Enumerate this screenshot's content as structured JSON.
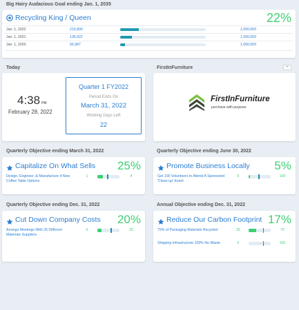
{
  "bhag": {
    "section_title": "Big Hairy Audacious Goal ending Jan. 1, 2035",
    "title": "Recycling King / Queen",
    "percent": "22%",
    "rows": [
      {
        "date": "Jan. 1, 2022",
        "value": "215,800",
        "target": "1,000,000",
        "progress": 0.216
      },
      {
        "date": "Jan. 1, 2021",
        "value": "135,922",
        "target": "1,000,000",
        "progress": 0.136
      },
      {
        "date": "Jan. 1, 2020",
        "value": "56,987",
        "target": "1,000,000",
        "progress": 0.057
      }
    ]
  },
  "today": {
    "section_title": "Today",
    "time": "4:38",
    "ampm": "PM",
    "date": "February 28, 2022",
    "quarter": "Quarter 1 FY2022",
    "period_label": "Period Ends On",
    "period_end": "March 31, 2022",
    "working_label": "Working Days Left",
    "working_days": "22"
  },
  "logo_panel": {
    "section_title": "FirstInFurniture",
    "collapse_label": "−",
    "brand_name": "FirstInFurniture",
    "tagline": "purchase with purpose."
  },
  "objectives": [
    {
      "section_title": "Quarterly Objective ending March 31, 2022",
      "title": "Capitalize On What Sells",
      "percent": "25%",
      "items": [
        {
          "name": "Design, Engineer, & Manufacture 4 New Coffee Table Options",
          "current": "1",
          "target": "4",
          "progress": 0.25,
          "marker": 0.45
        }
      ]
    },
    {
      "section_title": "Quarterly Objective ending June 30, 2022",
      "title": "Promote Business Locally",
      "percent": "5%",
      "items": [
        {
          "name": "Get 100 Volunteers to Attend A Sponsored 'Clean-up' Event",
          "current": "5",
          "target": "100",
          "progress": 0.05,
          "marker": 0.45
        }
      ]
    },
    {
      "section_title": "Quarterly Objective ending Dec. 31, 2022",
      "title": "Cut Down Company Costs",
      "percent": "20%",
      "items": [
        {
          "name": "Arrange Meetings With 25 Different Materials Suppliers",
          "current": "5",
          "target": "25",
          "progress": 0.2,
          "marker": 0.6
        }
      ]
    },
    {
      "section_title": "Annual Objective ending Dec. 31, 2022",
      "title": "Reduce Our Carbon Footprint",
      "percent": "17%",
      "items": [
        {
          "name": "75% of Packaging Materials Recycled",
          "current": "25",
          "target": "75",
          "progress": 0.33,
          "marker": 0.65
        },
        {
          "name": "Shipping Infrastructure 100% No Waste",
          "current": "0",
          "target": "100",
          "progress": 0.0,
          "marker": 0.65
        }
      ]
    }
  ]
}
